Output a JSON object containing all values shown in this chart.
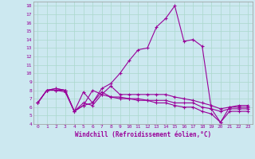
{
  "xlabel": "Windchill (Refroidissement éolien,°C)",
  "background_color": "#cce8f0",
  "grid_color": "#aad8cc",
  "line_color": "#990099",
  "xlim": [
    -0.5,
    23.5
  ],
  "ylim": [
    4,
    18.5
  ],
  "yticks": [
    4,
    5,
    6,
    7,
    8,
    9,
    10,
    11,
    12,
    13,
    14,
    15,
    16,
    17,
    18
  ],
  "xticks": [
    0,
    1,
    2,
    3,
    4,
    5,
    6,
    7,
    8,
    9,
    10,
    11,
    12,
    13,
    14,
    15,
    16,
    17,
    18,
    19,
    20,
    21,
    22,
    23
  ],
  "series": [
    [
      6.5,
      8.0,
      8.2,
      8.0,
      5.5,
      7.8,
      6.5,
      8.2,
      8.8,
      10.0,
      11.5,
      12.8,
      13.0,
      15.5,
      16.5,
      18.0,
      13.8,
      14.0,
      13.2,
      5.8,
      4.2,
      6.0,
      6.2,
      6.2
    ],
    [
      6.5,
      8.0,
      8.2,
      8.0,
      5.5,
      6.2,
      8.0,
      7.5,
      8.5,
      7.5,
      7.5,
      7.5,
      7.5,
      7.5,
      7.5,
      7.2,
      7.0,
      6.8,
      6.5,
      6.2,
      5.8,
      6.0,
      6.0,
      6.0
    ],
    [
      6.5,
      8.0,
      8.0,
      8.0,
      5.5,
      6.5,
      6.2,
      7.5,
      7.2,
      7.2,
      7.0,
      7.0,
      6.8,
      6.8,
      6.8,
      6.5,
      6.5,
      6.5,
      6.0,
      5.8,
      5.5,
      5.8,
      5.8,
      5.8
    ],
    [
      6.5,
      8.0,
      8.0,
      7.8,
      5.5,
      6.2,
      6.5,
      7.8,
      7.2,
      7.0,
      7.0,
      6.8,
      6.8,
      6.5,
      6.5,
      6.2,
      6.0,
      6.0,
      5.5,
      5.2,
      4.2,
      5.5,
      5.5,
      5.5
    ]
  ]
}
